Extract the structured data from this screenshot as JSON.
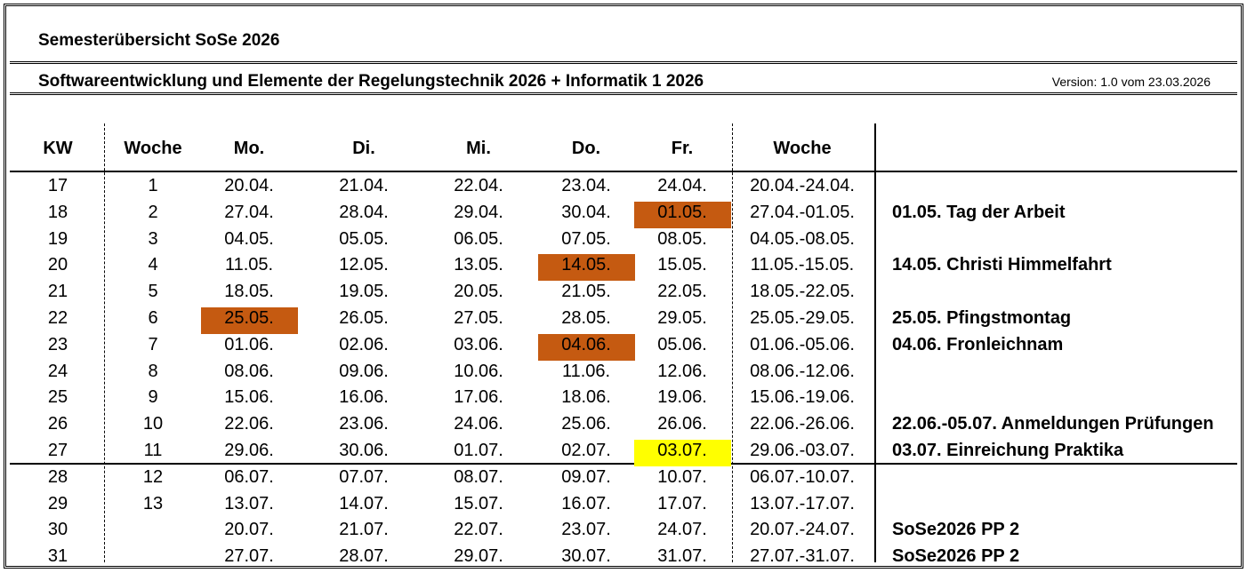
{
  "title": "Semesterübersicht SoSe 2026",
  "course": "Softwareentwicklung und Elemente der Regelungstechnik 2026 + Informatik 1 2026",
  "version": "Version: 1.0 vom 23.03.2026",
  "headers": {
    "kw": "KW",
    "woche": "Woche",
    "mo": "Mo.",
    "di": "Di.",
    "mi": "Mi.",
    "do": "Do.",
    "fr": "Fr.",
    "range": "Woche"
  },
  "colors": {
    "holiday": "#C55A11",
    "deadline": "#FFFF00"
  },
  "rows": [
    {
      "kw": "17",
      "woche": "1",
      "mo": "20.04.",
      "di": "21.04.",
      "mi": "22.04.",
      "do": "23.04.",
      "fr": "24.04.",
      "range": "20.04.-24.04.",
      "note": ""
    },
    {
      "kw": "18",
      "woche": "2",
      "mo": "27.04.",
      "di": "28.04.",
      "mi": "29.04.",
      "do": "30.04.",
      "fr": "01.05.",
      "range": "27.04.-01.05.",
      "note": "01.05. Tag der Arbeit"
    },
    {
      "kw": "19",
      "woche": "3",
      "mo": "04.05.",
      "di": "05.05.",
      "mi": "06.05.",
      "do": "07.05.",
      "fr": "08.05.",
      "range": "04.05.-08.05.",
      "note": ""
    },
    {
      "kw": "20",
      "woche": "4",
      "mo": "11.05.",
      "di": "12.05.",
      "mi": "13.05.",
      "do": "14.05.",
      "fr": "15.05.",
      "range": "11.05.-15.05.",
      "note": "14.05. Christi Himmelfahrt"
    },
    {
      "kw": "21",
      "woche": "5",
      "mo": "18.05.",
      "di": "19.05.",
      "mi": "20.05.",
      "do": "21.05.",
      "fr": "22.05.",
      "range": "18.05.-22.05.",
      "note": ""
    },
    {
      "kw": "22",
      "woche": "6",
      "mo": "25.05.",
      "di": "26.05.",
      "mi": "27.05.",
      "do": "28.05.",
      "fr": "29.05.",
      "range": "25.05.-29.05.",
      "note": "25.05. Pfingstmontag"
    },
    {
      "kw": "23",
      "woche": "7",
      "mo": "01.06.",
      "di": "02.06.",
      "mi": "03.06.",
      "do": "04.06.",
      "fr": "05.06.",
      "range": "01.06.-05.06.",
      "note": "04.06. Fronleichnam"
    },
    {
      "kw": "24",
      "woche": "8",
      "mo": "08.06.",
      "di": "09.06.",
      "mi": "10.06.",
      "do": "11.06.",
      "fr": "12.06.",
      "range": "08.06.-12.06.",
      "note": ""
    },
    {
      "kw": "25",
      "woche": "9",
      "mo": "15.06.",
      "di": "16.06.",
      "mi": "17.06.",
      "do": "18.06.",
      "fr": "19.06.",
      "range": "15.06.-19.06.",
      "note": ""
    },
    {
      "kw": "26",
      "woche": "10",
      "mo": "22.06.",
      "di": "23.06.",
      "mi": "24.06.",
      "do": "25.06.",
      "fr": "26.06.",
      "range": "22.06.-26.06.",
      "note": "22.06.-05.07. Anmeldungen Prüfungen"
    },
    {
      "kw": "27",
      "woche": "11",
      "mo": "29.06.",
      "di": "30.06.",
      "mi": "01.07.",
      "do": "02.07.",
      "fr": "03.07.",
      "range": "29.06.-03.07.",
      "note": "03.07. Einreichung Praktika"
    },
    {
      "kw": "28",
      "woche": "12",
      "mo": "06.07.",
      "di": "07.07.",
      "mi": "08.07.",
      "do": "09.07.",
      "fr": "10.07.",
      "range": "06.07.-10.07.",
      "note": ""
    },
    {
      "kw": "29",
      "woche": "13",
      "mo": "13.07.",
      "di": "14.07.",
      "mi": "15.07.",
      "do": "16.07.",
      "fr": "17.07.",
      "range": "13.07.-17.07.",
      "note": ""
    },
    {
      "kw": "30",
      "woche": "",
      "mo": "20.07.",
      "di": "21.07.",
      "mi": "22.07.",
      "do": "23.07.",
      "fr": "24.07.",
      "range": "20.07.-24.07.",
      "note": "SoSe2026 PP 2"
    },
    {
      "kw": "31",
      "woche": "",
      "mo": "27.07.",
      "di": "28.07.",
      "mi": "29.07.",
      "do": "30.07.",
      "fr": "31.07.",
      "range": "27.07.-31.07.",
      "note": "SoSe2026 PP 2"
    }
  ],
  "highlights": [
    {
      "row": 1,
      "col": "fr",
      "kind": "holiday"
    },
    {
      "row": 3,
      "col": "do",
      "kind": "holiday"
    },
    {
      "row": 5,
      "col": "mo",
      "kind": "holiday"
    },
    {
      "row": 6,
      "col": "do",
      "kind": "holiday"
    },
    {
      "row": 10,
      "col": "fr",
      "kind": "deadline"
    }
  ]
}
